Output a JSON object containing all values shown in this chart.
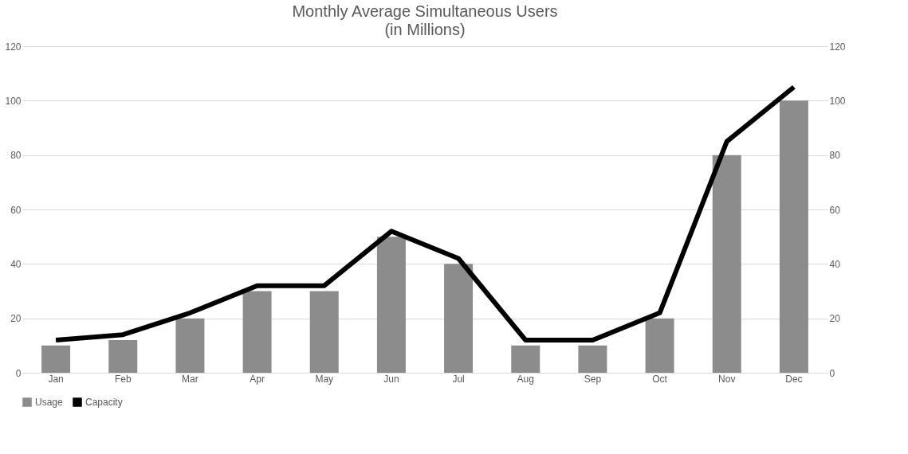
{
  "chart_data": {
    "type": "bar",
    "title": "Monthly Average Simultaneous Users",
    "subtitle": "(in Millions)",
    "categories": [
      "Jan",
      "Feb",
      "Mar",
      "Apr",
      "May",
      "Jun",
      "Jul",
      "Aug",
      "Sep",
      "Oct",
      "Nov",
      "Dec"
    ],
    "series": [
      {
        "name": "Usage",
        "color": "#8c8c8c",
        "values": [
          10,
          12,
          20,
          30,
          30,
          50,
          40,
          10,
          10,
          20,
          80,
          100
        ]
      },
      {
        "name": "Capacity",
        "type": "line",
        "axis": "y2",
        "color": "#000000",
        "values": [
          12,
          14,
          22,
          32,
          32,
          52,
          42,
          12,
          12,
          22,
          85,
          105
        ]
      }
    ],
    "ylim": [
      0,
      120
    ],
    "yticks": [
      0,
      20,
      40,
      60,
      80,
      100,
      120
    ],
    "y2lim": [
      0,
      120
    ],
    "y2ticks": [
      0,
      20,
      40,
      60,
      80,
      100,
      120
    ],
    "grid": "y",
    "legend": "bottom",
    "marker": "none",
    "line_style": "solid"
  }
}
